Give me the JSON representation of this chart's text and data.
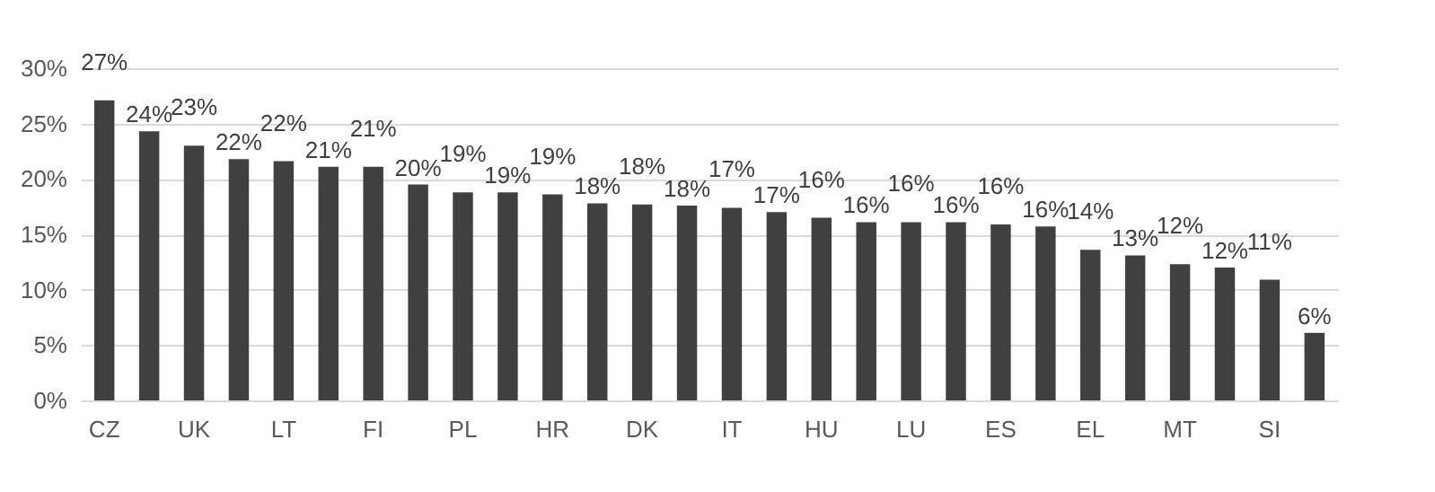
{
  "chart_data": {
    "type": "bar",
    "categories": [
      "CZ",
      null,
      "UK",
      null,
      "LT",
      null,
      "FI",
      null,
      "PL",
      null,
      "HR",
      null,
      "DK",
      null,
      "IT",
      null,
      "HU",
      null,
      "LU",
      null,
      "ES",
      null,
      "EL",
      null,
      "MT",
      null,
      "SI",
      null
    ],
    "values": [
      27.1,
      24.3,
      23.0,
      21.8,
      21.6,
      21.1,
      21.1,
      19.5,
      18.8,
      18.8,
      18.6,
      17.8,
      17.7,
      17.6,
      17.4,
      17.0,
      16.5,
      16.1,
      16.1,
      16.1,
      15.9,
      15.7,
      13.6,
      13.1,
      12.3,
      12.0,
      10.9,
      6.1
    ],
    "value_labels": [
      "27%",
      "24%",
      "23%",
      "22%",
      "22%",
      "21%",
      "21%",
      "20%",
      "19%",
      "19%",
      "19%",
      "18%",
      "18%",
      "18%",
      "17%",
      "17%",
      "16%",
      "16%",
      "16%",
      "16%",
      "16%",
      "16%",
      "14%",
      "13%",
      "12%",
      "12%",
      "11%",
      "6%"
    ],
    "color": "#404040",
    "ylim": [
      0,
      30
    ],
    "yticks": [
      {
        "value": 0,
        "label": "0%"
      },
      {
        "value": 5,
        "label": "5%"
      },
      {
        "value": 10,
        "label": "10%"
      },
      {
        "value": 15,
        "label": "15%"
      },
      {
        "value": 20,
        "label": "20%"
      },
      {
        "value": 25,
        "label": "25%"
      },
      {
        "value": 30,
        "label": "30%"
      }
    ],
    "grid": "y"
  }
}
